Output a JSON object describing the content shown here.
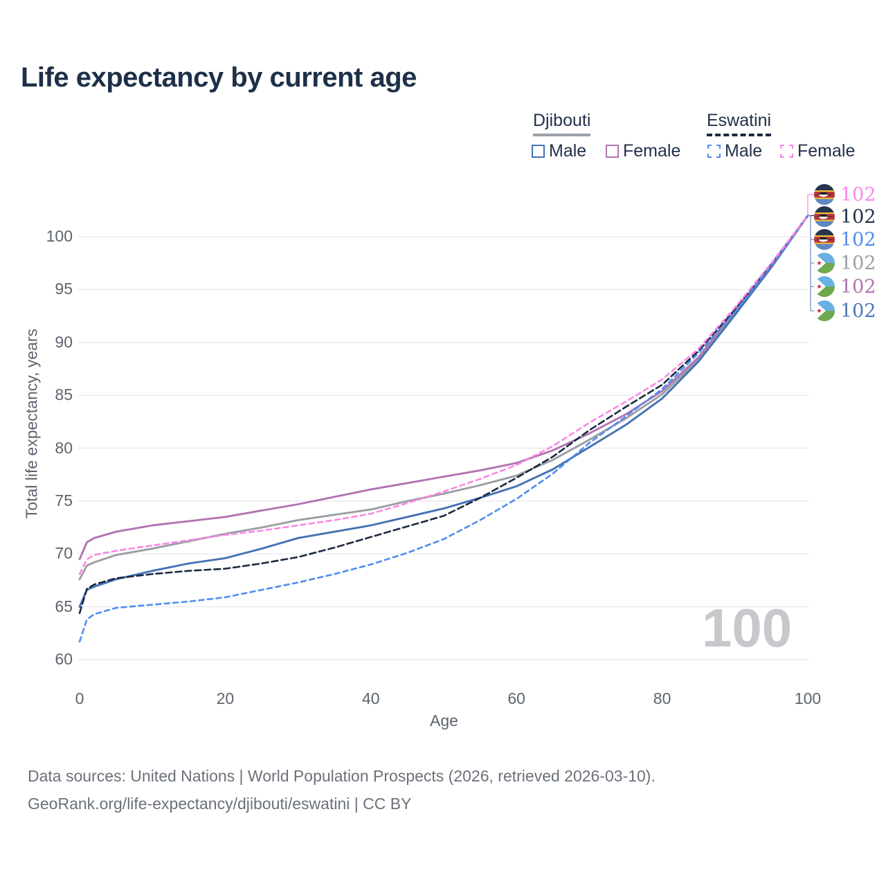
{
  "title": "Life expectancy by current age",
  "legend": {
    "groups": [
      {
        "country": "Djibouti",
        "line_style": "solid",
        "items": [
          {
            "label": "Male",
            "series": "djibouti_male"
          },
          {
            "label": "Female",
            "series": "djibouti_female"
          }
        ]
      },
      {
        "country": "Eswatini",
        "line_style": "dashed",
        "items": [
          {
            "label": "Male",
            "series": "eswatini_male"
          },
          {
            "label": "Female",
            "series": "eswatini_female"
          }
        ]
      }
    ]
  },
  "colors": {
    "djibouti_male": "#4472b4",
    "djibouti_female": "#b174b1",
    "djibouti_both": "#9b9ea4",
    "eswatini_male": "#4e8cf0",
    "eswatini_female": "#fc85e6",
    "eswatini_both": "#1b2940",
    "title": "#1e3048",
    "tick": "#5d646e",
    "grid": "#ececef",
    "watermark": "#c7c7cc"
  },
  "chart_data": {
    "type": "line",
    "title": "Life expectancy by current age",
    "xlabel": "Age",
    "ylabel": "Total life expectancy, years",
    "xlim": [
      0,
      100
    ],
    "ylim": [
      60,
      102.5
    ],
    "xticks": [
      0,
      20,
      40,
      60,
      80,
      100
    ],
    "yticks": [
      60,
      65,
      70,
      75,
      80,
      85,
      90,
      95,
      100
    ],
    "grid": "horizontal",
    "legend_position": "top-right",
    "x": [
      0,
      1,
      2,
      5,
      10,
      15,
      20,
      25,
      30,
      35,
      40,
      45,
      50,
      55,
      60,
      65,
      70,
      75,
      80,
      85,
      90,
      95,
      100
    ],
    "series": [
      {
        "name": "Djibouti (both sexes)",
        "key": "djibouti_both",
        "dashed": false,
        "values": [
          67.6,
          68.9,
          69.2,
          69.9,
          70.5,
          71.2,
          71.9,
          72.5,
          73.2,
          73.7,
          74.2,
          75.0,
          75.7,
          76.5,
          77.4,
          78.9,
          80.8,
          82.8,
          85.1,
          88.4,
          92.8,
          97.2,
          102
        ]
      },
      {
        "name": "Djibouti Male",
        "key": "djibouti_male",
        "dashed": false,
        "values": [
          65.0,
          66.6,
          66.9,
          67.6,
          68.4,
          69.1,
          69.6,
          70.5,
          71.5,
          72.1,
          72.7,
          73.5,
          74.3,
          75.3,
          76.4,
          78.0,
          80.1,
          82.2,
          84.7,
          88.2,
          92.6,
          97.1,
          102
        ]
      },
      {
        "name": "Djibouti Female",
        "key": "djibouti_female",
        "dashed": false,
        "values": [
          69.5,
          71.1,
          71.5,
          72.1,
          72.7,
          73.1,
          73.5,
          74.1,
          74.7,
          75.4,
          76.1,
          76.7,
          77.3,
          77.9,
          78.6,
          79.8,
          81.4,
          83.2,
          85.4,
          88.6,
          93.0,
          97.3,
          102
        ]
      },
      {
        "name": "Eswatini (both sexes)",
        "key": "eswatini_both",
        "dashed": true,
        "values": [
          64.4,
          66.7,
          67.1,
          67.7,
          68.1,
          68.4,
          68.6,
          69.1,
          69.7,
          70.6,
          71.6,
          72.6,
          73.6,
          75.3,
          77.2,
          79.2,
          81.7,
          83.9,
          86.0,
          89.2,
          93.1,
          97.4,
          102
        ]
      },
      {
        "name": "Eswatini Male",
        "key": "eswatini_male",
        "dashed": true,
        "values": [
          61.7,
          63.8,
          64.3,
          64.9,
          65.2,
          65.5,
          65.9,
          66.6,
          67.3,
          68.1,
          69.0,
          70.1,
          71.4,
          73.2,
          75.2,
          77.6,
          80.5,
          83.0,
          85.6,
          89.0,
          92.9,
          97.3,
          102
        ]
      },
      {
        "name": "Eswatini Female",
        "key": "eswatini_female",
        "dashed": true,
        "values": [
          68.1,
          69.5,
          69.9,
          70.3,
          70.8,
          71.3,
          71.8,
          72.2,
          72.7,
          73.2,
          73.8,
          74.8,
          75.9,
          77.1,
          78.4,
          80.2,
          82.4,
          84.4,
          86.5,
          89.4,
          93.3,
          97.5,
          102
        ]
      }
    ]
  },
  "end_labels": [
    {
      "country": "Eswatini",
      "series": "Eswatini Female",
      "value": "102",
      "color": "#fc85e6"
    },
    {
      "country": "Eswatini",
      "series": "Eswatini (both sexes)",
      "value": "102",
      "color": "#22304a"
    },
    {
      "country": "Eswatini",
      "series": "Eswatini Male",
      "value": "102",
      "color": "#4e8cf0"
    },
    {
      "country": "Djibouti",
      "series": "Djibouti (both sexes)",
      "value": "102",
      "color": "#9ba0a8"
    },
    {
      "country": "Djibouti",
      "series": "Djibouti Female",
      "value": "102",
      "color": "#b174b1"
    },
    {
      "country": "Djibouti",
      "series": "Djibouti Male",
      "value": "102",
      "color": "#4a77bd"
    }
  ],
  "watermark_age": "100",
  "footer": {
    "line1": "Data sources: United Nations | World Population Prospects (2026, retrieved 2026-03-10).",
    "line2": "GeoRank.org/life-expectancy/djibouti/eswatini | CC BY"
  }
}
